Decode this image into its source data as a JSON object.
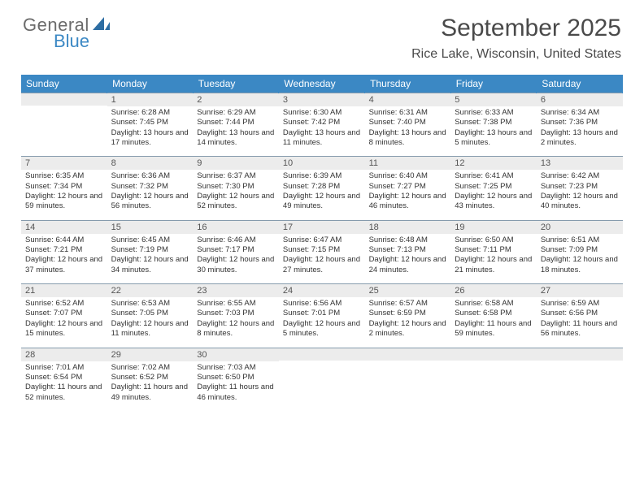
{
  "brand": {
    "general": "General",
    "blue": "Blue"
  },
  "title": "September 2025",
  "location": "Rice Lake, Wisconsin, United States",
  "colors": {
    "header_bg": "#3b88c4",
    "daynum_bg": "#ececec",
    "border": "#869bad",
    "text": "#333333"
  },
  "weekday_labels": [
    "Sunday",
    "Monday",
    "Tuesday",
    "Wednesday",
    "Thursday",
    "Friday",
    "Saturday"
  ],
  "weeks": [
    [
      null,
      {
        "n": "1",
        "sr": "Sunrise: 6:28 AM",
        "ss": "Sunset: 7:45 PM",
        "dl": "Daylight: 13 hours and 17 minutes."
      },
      {
        "n": "2",
        "sr": "Sunrise: 6:29 AM",
        "ss": "Sunset: 7:44 PM",
        "dl": "Daylight: 13 hours and 14 minutes."
      },
      {
        "n": "3",
        "sr": "Sunrise: 6:30 AM",
        "ss": "Sunset: 7:42 PM",
        "dl": "Daylight: 13 hours and 11 minutes."
      },
      {
        "n": "4",
        "sr": "Sunrise: 6:31 AM",
        "ss": "Sunset: 7:40 PM",
        "dl": "Daylight: 13 hours and 8 minutes."
      },
      {
        "n": "5",
        "sr": "Sunrise: 6:33 AM",
        "ss": "Sunset: 7:38 PM",
        "dl": "Daylight: 13 hours and 5 minutes."
      },
      {
        "n": "6",
        "sr": "Sunrise: 6:34 AM",
        "ss": "Sunset: 7:36 PM",
        "dl": "Daylight: 13 hours and 2 minutes."
      }
    ],
    [
      {
        "n": "7",
        "sr": "Sunrise: 6:35 AM",
        "ss": "Sunset: 7:34 PM",
        "dl": "Daylight: 12 hours and 59 minutes."
      },
      {
        "n": "8",
        "sr": "Sunrise: 6:36 AM",
        "ss": "Sunset: 7:32 PM",
        "dl": "Daylight: 12 hours and 56 minutes."
      },
      {
        "n": "9",
        "sr": "Sunrise: 6:37 AM",
        "ss": "Sunset: 7:30 PM",
        "dl": "Daylight: 12 hours and 52 minutes."
      },
      {
        "n": "10",
        "sr": "Sunrise: 6:39 AM",
        "ss": "Sunset: 7:28 PM",
        "dl": "Daylight: 12 hours and 49 minutes."
      },
      {
        "n": "11",
        "sr": "Sunrise: 6:40 AM",
        "ss": "Sunset: 7:27 PM",
        "dl": "Daylight: 12 hours and 46 minutes."
      },
      {
        "n": "12",
        "sr": "Sunrise: 6:41 AM",
        "ss": "Sunset: 7:25 PM",
        "dl": "Daylight: 12 hours and 43 minutes."
      },
      {
        "n": "13",
        "sr": "Sunrise: 6:42 AM",
        "ss": "Sunset: 7:23 PM",
        "dl": "Daylight: 12 hours and 40 minutes."
      }
    ],
    [
      {
        "n": "14",
        "sr": "Sunrise: 6:44 AM",
        "ss": "Sunset: 7:21 PM",
        "dl": "Daylight: 12 hours and 37 minutes."
      },
      {
        "n": "15",
        "sr": "Sunrise: 6:45 AM",
        "ss": "Sunset: 7:19 PM",
        "dl": "Daylight: 12 hours and 34 minutes."
      },
      {
        "n": "16",
        "sr": "Sunrise: 6:46 AM",
        "ss": "Sunset: 7:17 PM",
        "dl": "Daylight: 12 hours and 30 minutes."
      },
      {
        "n": "17",
        "sr": "Sunrise: 6:47 AM",
        "ss": "Sunset: 7:15 PM",
        "dl": "Daylight: 12 hours and 27 minutes."
      },
      {
        "n": "18",
        "sr": "Sunrise: 6:48 AM",
        "ss": "Sunset: 7:13 PM",
        "dl": "Daylight: 12 hours and 24 minutes."
      },
      {
        "n": "19",
        "sr": "Sunrise: 6:50 AM",
        "ss": "Sunset: 7:11 PM",
        "dl": "Daylight: 12 hours and 21 minutes."
      },
      {
        "n": "20",
        "sr": "Sunrise: 6:51 AM",
        "ss": "Sunset: 7:09 PM",
        "dl": "Daylight: 12 hours and 18 minutes."
      }
    ],
    [
      {
        "n": "21",
        "sr": "Sunrise: 6:52 AM",
        "ss": "Sunset: 7:07 PM",
        "dl": "Daylight: 12 hours and 15 minutes."
      },
      {
        "n": "22",
        "sr": "Sunrise: 6:53 AM",
        "ss": "Sunset: 7:05 PM",
        "dl": "Daylight: 12 hours and 11 minutes."
      },
      {
        "n": "23",
        "sr": "Sunrise: 6:55 AM",
        "ss": "Sunset: 7:03 PM",
        "dl": "Daylight: 12 hours and 8 minutes."
      },
      {
        "n": "24",
        "sr": "Sunrise: 6:56 AM",
        "ss": "Sunset: 7:01 PM",
        "dl": "Daylight: 12 hours and 5 minutes."
      },
      {
        "n": "25",
        "sr": "Sunrise: 6:57 AM",
        "ss": "Sunset: 6:59 PM",
        "dl": "Daylight: 12 hours and 2 minutes."
      },
      {
        "n": "26",
        "sr": "Sunrise: 6:58 AM",
        "ss": "Sunset: 6:58 PM",
        "dl": "Daylight: 11 hours and 59 minutes."
      },
      {
        "n": "27",
        "sr": "Sunrise: 6:59 AM",
        "ss": "Sunset: 6:56 PM",
        "dl": "Daylight: 11 hours and 56 minutes."
      }
    ],
    [
      {
        "n": "28",
        "sr": "Sunrise: 7:01 AM",
        "ss": "Sunset: 6:54 PM",
        "dl": "Daylight: 11 hours and 52 minutes."
      },
      {
        "n": "29",
        "sr": "Sunrise: 7:02 AM",
        "ss": "Sunset: 6:52 PM",
        "dl": "Daylight: 11 hours and 49 minutes."
      },
      {
        "n": "30",
        "sr": "Sunrise: 7:03 AM",
        "ss": "Sunset: 6:50 PM",
        "dl": "Daylight: 11 hours and 46 minutes."
      },
      null,
      null,
      null,
      null
    ]
  ]
}
